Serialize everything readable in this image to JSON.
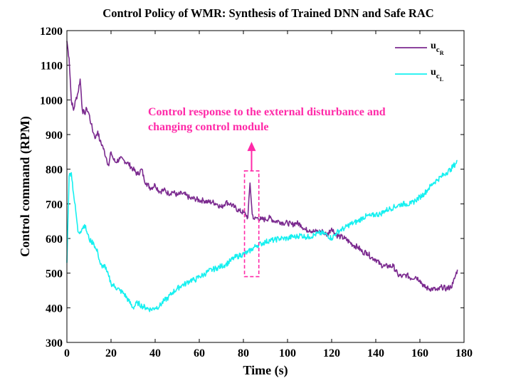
{
  "chart_data": {
    "type": "line",
    "title": "Control Policy of WMR: Synthesis of Trained DNN and Safe RAC",
    "xlabel": "Time (s)",
    "ylabel": "Control command (RPM)",
    "xlim": [
      0,
      180
    ],
    "ylim": [
      300,
      1200
    ],
    "xticks": [
      0,
      20,
      40,
      60,
      80,
      100,
      120,
      140,
      160,
      180
    ],
    "yticks": [
      300,
      400,
      500,
      600,
      700,
      800,
      900,
      1000,
      1100,
      1200
    ],
    "legend_position": "top-right",
    "series": [
      {
        "name": "u_cR",
        "legend_main": "u",
        "legend_sub": "c",
        "legend_subsub": "R",
        "color": "#7b2a8f",
        "x": [
          0,
          1,
          2,
          3,
          4,
          5,
          6,
          7,
          8,
          9,
          10,
          11,
          12,
          13,
          14,
          15,
          16,
          18,
          19,
          20,
          21,
          22,
          24,
          26,
          28,
          30,
          32,
          34,
          35,
          36,
          38,
          40,
          42,
          44,
          46,
          48,
          50,
          52,
          54,
          56,
          58,
          60,
          62,
          64,
          66,
          68,
          70,
          72,
          74,
          76,
          78,
          80,
          81,
          82,
          83,
          84,
          85,
          86,
          88,
          90,
          92,
          94,
          96,
          98,
          100,
          102,
          104,
          106,
          108,
          110,
          112,
          114,
          116,
          118,
          120,
          122,
          124,
          126,
          128,
          130,
          132,
          134,
          136,
          138,
          140,
          142,
          144,
          146,
          148,
          150,
          152,
          154,
          156,
          158,
          160,
          162,
          164,
          166,
          168,
          170,
          172,
          174,
          175,
          176,
          177
        ],
        "y": [
          1170,
          1120,
          1000,
          970,
          1000,
          1020,
          1060,
          970,
          960,
          975,
          960,
          930,
          905,
          890,
          910,
          880,
          870,
          830,
          810,
          850,
          830,
          820,
          830,
          825,
          815,
          800,
          785,
          800,
          770,
          760,
          745,
          755,
          735,
          740,
          730,
          735,
          725,
          730,
          725,
          715,
          715,
          710,
          710,
          705,
          705,
          700,
          690,
          705,
          700,
          690,
          680,
          675,
          670,
          660,
          760,
          670,
          655,
          660,
          655,
          655,
          660,
          650,
          650,
          645,
          645,
          640,
          645,
          640,
          625,
          625,
          620,
          620,
          620,
          610,
          630,
          610,
          605,
          600,
          590,
          580,
          575,
          560,
          560,
          545,
          540,
          525,
          520,
          520,
          520,
          495,
          490,
          495,
          485,
          490,
          480,
          460,
          455,
          455,
          450,
          460,
          455,
          460,
          470,
          490,
          510
        ]
      },
      {
        "name": "u_cL",
        "legend_main": "u",
        "legend_sub": "c",
        "legend_subsub": "L",
        "color": "#16f0f0",
        "x": [
          0,
          1,
          2,
          3,
          4,
          5,
          6,
          7,
          8,
          9,
          10,
          11,
          12,
          13,
          14,
          15,
          16,
          17,
          18,
          19,
          20,
          22,
          24,
          26,
          28,
          30,
          32,
          34,
          36,
          38,
          40,
          42,
          44,
          46,
          48,
          50,
          52,
          54,
          56,
          58,
          60,
          62,
          64,
          66,
          68,
          70,
          72,
          74,
          76,
          78,
          80,
          82,
          84,
          86,
          88,
          90,
          92,
          94,
          96,
          98,
          100,
          102,
          104,
          106,
          108,
          110,
          112,
          114,
          116,
          118,
          120,
          122,
          124,
          126,
          128,
          130,
          132,
          134,
          136,
          138,
          140,
          142,
          144,
          146,
          148,
          150,
          152,
          154,
          156,
          158,
          160,
          162,
          164,
          166,
          168,
          170,
          172,
          174,
          176,
          177
        ],
        "y": [
          530,
          780,
          790,
          730,
          680,
          620,
          620,
          630,
          640,
          620,
          600,
          590,
          590,
          570,
          560,
          530,
          515,
          525,
          505,
          490,
          470,
          460,
          450,
          440,
          420,
          400,
          415,
          405,
          400,
          395,
          400,
          405,
          420,
          430,
          445,
          455,
          465,
          470,
          480,
          480,
          490,
          495,
          505,
          510,
          515,
          520,
          525,
          535,
          545,
          550,
          555,
          560,
          570,
          580,
          585,
          590,
          595,
          595,
          600,
          600,
          600,
          605,
          605,
          610,
          605,
          605,
          610,
          615,
          615,
          610,
          600,
          615,
          625,
          630,
          640,
          645,
          650,
          660,
          665,
          665,
          670,
          670,
          680,
          685,
          690,
          695,
          700,
          700,
          700,
          710,
          720,
          730,
          745,
          760,
          770,
          780,
          790,
          800,
          815,
          825
        ]
      }
    ],
    "annotation": {
      "lines": [
        "Control response to the external disturbance and",
        "changing control module"
      ],
      "color": "#ff2aa8",
      "box_x": [
        80.5,
        87
      ],
      "box_y": [
        490,
        795
      ],
      "arrow_x": 83.7,
      "arrow_y_from": 795,
      "arrow_y_to": 875
    }
  }
}
